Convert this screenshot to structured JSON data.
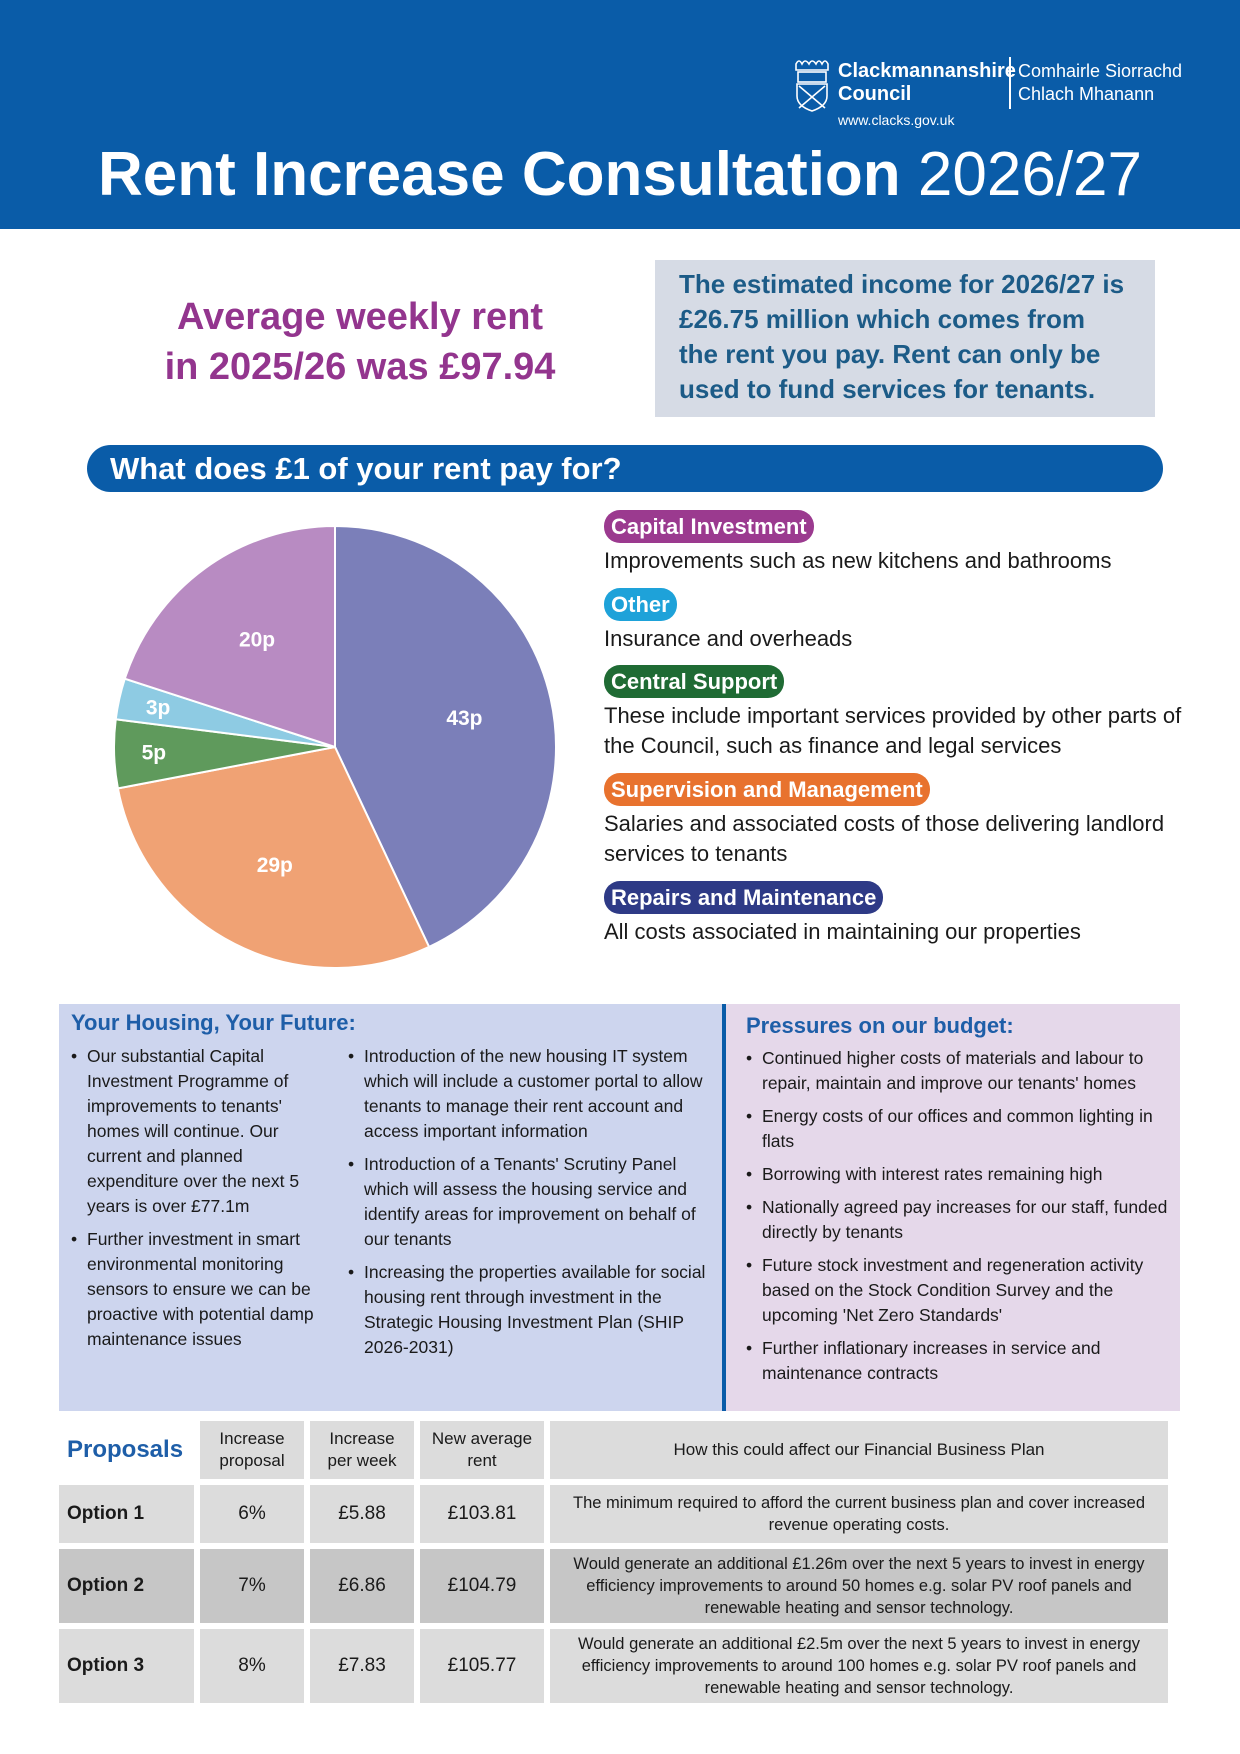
{
  "header": {
    "council_name_en": "Clackmannanshire Council",
    "council_name_gd_line1": "Comhairle Siorrachd",
    "council_name_gd_line2": "Chlach Mhanann",
    "council_name_en_line1": "Clackmannanshire",
    "council_name_en_line2": "Council",
    "url": "www.clacks.gov.uk",
    "title_bold": "Rent Increase Consultation",
    "title_year": "2026/27"
  },
  "average": {
    "line1": "Average weekly rent",
    "line2": "in 2025/26 was",
    "amount": "£97.94"
  },
  "income_note": "The estimated income for 2026/27 is £26.75 million which comes from the rent you pay. Rent can only be used to fund services for tenants.",
  "banner": "What does £1 of your rent pay for?",
  "chart_data": {
    "type": "pie",
    "unit": "p",
    "start": "top",
    "direction": "clockwise",
    "slices": [
      {
        "label": "43p",
        "category": "Repairs and Maintenance",
        "value": 43,
        "color": "#7b7fb9"
      },
      {
        "label": "29p",
        "category": "Supervision and Management",
        "value": 29,
        "color": "#f0a274"
      },
      {
        "label": "5p",
        "category": "Central Support",
        "value": 5,
        "color": "#5f9a5c"
      },
      {
        "label": "3p",
        "category": "Other",
        "value": 3,
        "color": "#8ecbe3"
      },
      {
        "label": "20p",
        "category": "Capital Investment",
        "value": 20,
        "color": "#b88bc2"
      }
    ]
  },
  "legend": [
    {
      "title": "Capital Investment",
      "color": "#9b3a8f",
      "desc": "Improvements such as new kitchens and bathrooms"
    },
    {
      "title": "Other",
      "color": "#1ea2d9",
      "desc": "Insurance and overheads"
    },
    {
      "title": "Central Support",
      "color": "#1f6b34",
      "desc": "These include important services provided by other parts of the Council, such as finance and legal services"
    },
    {
      "title": "Supervision and Management",
      "color": "#e8722e",
      "desc": "Salaries and associated costs of those delivering landlord services to tenants"
    },
    {
      "title": "Repairs and Maintenance",
      "color": "#2e3a86",
      "desc": "All costs associated in maintaining our properties"
    }
  ],
  "housing": {
    "heading": "Your Housing, Your Future:",
    "col1": [
      "Our substantial Capital Investment Programme of improvements to tenants' homes will continue. Our current and planned expenditure over the next 5 years is over £77.1m",
      "Further investment in smart environmental monitoring sensors to ensure we can be proactive with potential damp maintenance issues"
    ],
    "col2": [
      "Introduction of the new housing IT system which will include a customer portal to allow tenants to manage their rent account and access important information",
      "Introduction of a Tenants' Scrutiny Panel which will assess the housing service and identify areas for improvement on behalf of our tenants",
      "Increasing the properties available for social housing rent through investment in the Strategic Housing Investment Plan (SHIP 2026-2031)"
    ]
  },
  "pressures": {
    "heading": "Pressures on our budget:",
    "items": [
      "Continued higher costs of materials and labour to repair, maintain and improve our tenants' homes",
      "Energy costs of our offices and common lighting in flats",
      "Borrowing with interest rates remaining high",
      "Nationally agreed pay increases for our staff, funded directly by tenants",
      "Future stock investment and regeneration activity based on the Stock Condition Survey and the upcoming 'Net Zero Standards'",
      "Further inflationary increases in service and maintenance contracts"
    ]
  },
  "proposals": {
    "heading": "Proposals",
    "columns": [
      "Increase proposal",
      "Increase per week",
      "New average rent",
      "How this could affect our Financial Business Plan"
    ],
    "rows": [
      {
        "option": "Option 1",
        "increase": "6%",
        "per_week": "£5.88",
        "new_rent": "£103.81",
        "effect": "The minimum required to afford the current business plan and cover increased revenue operating costs."
      },
      {
        "option": "Option 2",
        "increase": "7%",
        "per_week": "£6.86",
        "new_rent": "£104.79",
        "effect": "Would generate an additional £1.26m over the next 5 years to invest in energy efficiency improvements to around 50 homes e.g. solar PV roof panels and renewable heating and sensor technology."
      },
      {
        "option": "Option 3",
        "increase": "8%",
        "per_week": "£7.83",
        "new_rent": "£105.77",
        "effect": "Would generate an additional £2.5m over the next 5 years to invest in energy efficiency improvements to around 100 homes e.g. solar PV roof panels and renewable heating and sensor technology."
      }
    ]
  }
}
